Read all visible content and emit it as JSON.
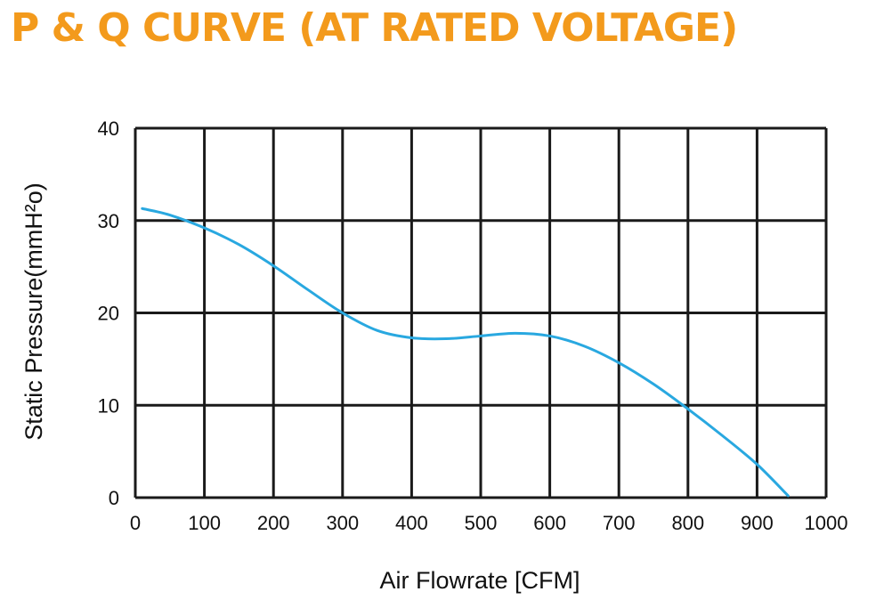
{
  "chart_data": {
    "type": "line",
    "title": "P & Q CURVE (AT RATED VOLTAGE)",
    "xlabel": "Air  Flowrate   [CFM]",
    "ylabel": "Static Pressure(mmH²o)",
    "xlim": [
      0,
      1000
    ],
    "ylim": [
      0,
      40
    ],
    "x_ticks": [
      0,
      100,
      200,
      300,
      400,
      500,
      600,
      700,
      800,
      900,
      1000
    ],
    "y_ticks": [
      0,
      10,
      20,
      30,
      40
    ],
    "grid": true,
    "series": [
      {
        "color": "#29a8e0",
        "x": [
          10,
          50,
          100,
          150,
          200,
          250,
          300,
          350,
          400,
          450,
          500,
          550,
          600,
          650,
          700,
          750,
          800,
          850,
          900,
          945
        ],
        "y": [
          31.3,
          30.6,
          29.2,
          27.4,
          25.1,
          22.5,
          20.0,
          18.1,
          17.3,
          17.2,
          17.5,
          17.8,
          17.5,
          16.4,
          14.6,
          12.3,
          9.6,
          6.7,
          3.6,
          0.2
        ]
      }
    ]
  }
}
